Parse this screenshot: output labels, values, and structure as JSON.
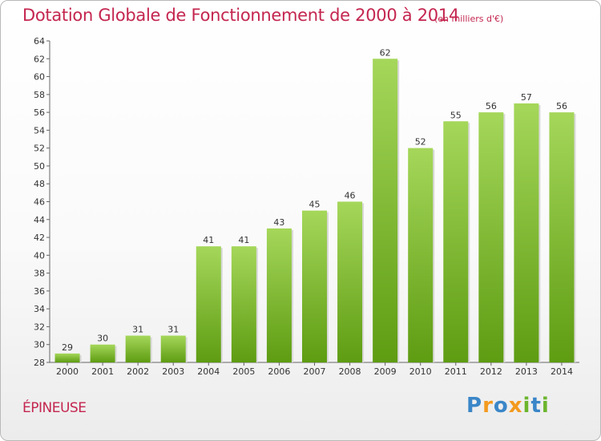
{
  "header": {
    "title": "Dotation Globale de Fonctionnement de 2000 à 2014",
    "unit": "(en milliers d'€)"
  },
  "footer": {
    "commune": "ÉPINEUSE",
    "logo_text": "Proxiti"
  },
  "colors": {
    "title": "#c4264f",
    "bar_light": "#a5d75a",
    "bar_dark": "#5e9c12",
    "logo_blue": "#3a86c8",
    "logo_orange": "#f39a1e",
    "logo_green": "#6cb52d"
  },
  "chart_data": {
    "type": "bar",
    "title": "Dotation Globale de Fonctionnement de 2000 à 2014",
    "subtitle": "(en milliers d'€)",
    "xlabel": "",
    "ylabel": "",
    "categories": [
      "2000",
      "2001",
      "2002",
      "2003",
      "2004",
      "2005",
      "2006",
      "2007",
      "2008",
      "2009",
      "2010",
      "2011",
      "2012",
      "2013",
      "2014"
    ],
    "values": [
      29,
      30,
      31,
      31,
      41,
      41,
      43,
      45,
      46,
      62,
      52,
      55,
      56,
      57,
      56
    ],
    "value_labels": [
      "29",
      "30",
      "31",
      "31",
      "41",
      "41",
      "43",
      "45",
      "46",
      "62",
      "52",
      "55",
      "56",
      "57",
      "56"
    ],
    "ylim": [
      28,
      64
    ],
    "yticks": [
      "28",
      "30",
      "32",
      "34",
      "36",
      "38",
      "40",
      "42",
      "44",
      "46",
      "48",
      "50",
      "52",
      "54",
      "56",
      "58",
      "60",
      "62",
      "64"
    ],
    "grid": false,
    "legend": "none"
  }
}
